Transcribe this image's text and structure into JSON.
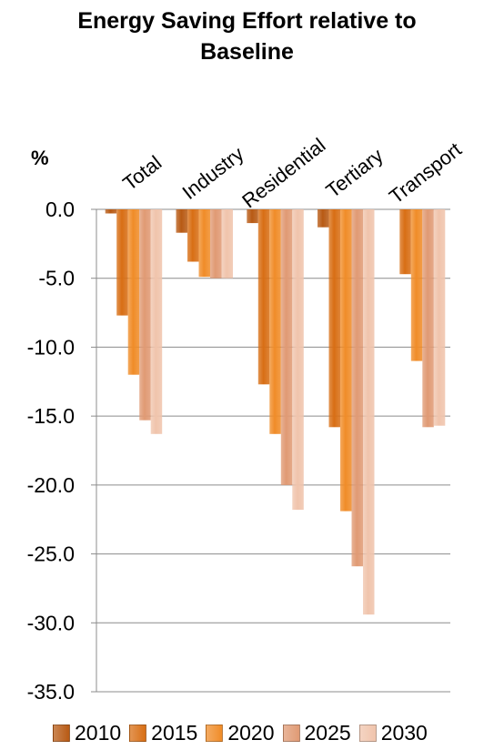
{
  "chart_data": {
    "type": "bar",
    "title_lines": [
      "Energy Saving Effort relative to",
      "Baseline"
    ],
    "ylabel": "%",
    "categories": [
      "Total",
      "Industry",
      "Residential",
      "Tertiary",
      "Transport"
    ],
    "series": [
      {
        "name": "2010",
        "color": "#b85a14",
        "values": [
          -0.3,
          -1.7,
          -1.0,
          -1.3,
          0.0
        ]
      },
      {
        "name": "2015",
        "color": "#d86e14",
        "values": [
          -7.7,
          -3.8,
          -12.7,
          -15.8,
          -4.7
        ]
      },
      {
        "name": "2020",
        "color": "#f08c28",
        "values": [
          -12.0,
          -4.9,
          -16.3,
          -21.9,
          -11.0
        ]
      },
      {
        "name": "2025",
        "color": "#e09a74",
        "values": [
          -15.3,
          -5.0,
          -20.0,
          -25.9,
          -15.8
        ]
      },
      {
        "name": "2030",
        "color": "#f0c4ac",
        "values": [
          -16.3,
          -5.0,
          -21.8,
          -29.4,
          -15.7
        ]
      }
    ],
    "ylim": [
      -35,
      0
    ],
    "yticks": [
      "0.0",
      "-5.0",
      "-10.0",
      "-15.0",
      "-20.0",
      "-25.0",
      "-30.0",
      "-35.0"
    ],
    "grid": true,
    "legend": "bottom"
  }
}
